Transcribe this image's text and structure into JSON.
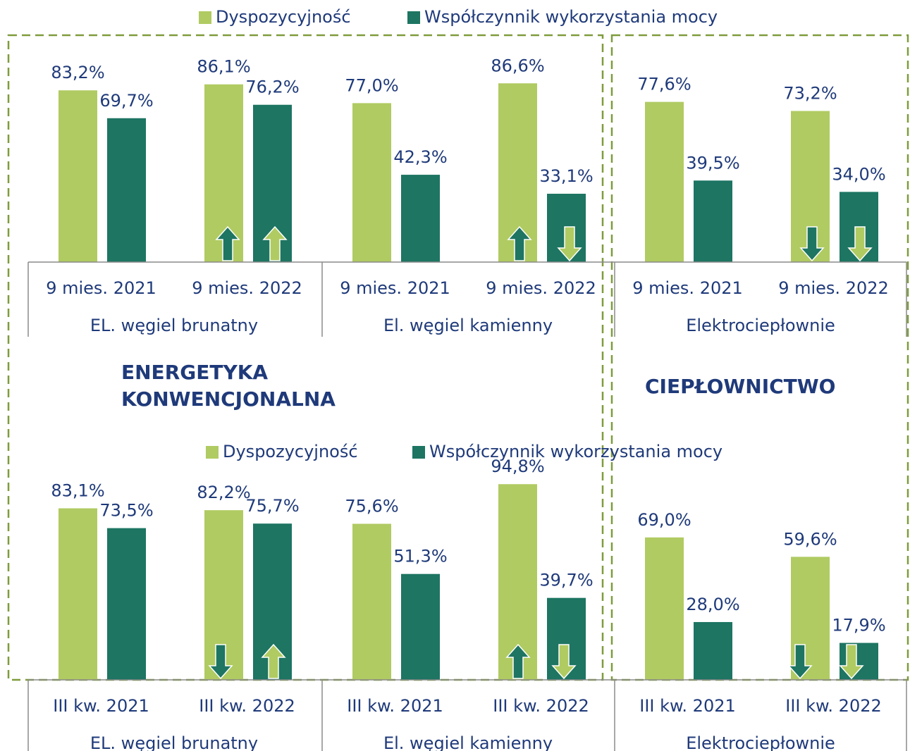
{
  "chart_data": [
    {
      "type": "bar",
      "categories": [
        "9 mies. 2021",
        "9 mies. 2022",
        "9 mies. 2021",
        "9 mies. 2022",
        "9 mies. 2021",
        "9 mies. 2022"
      ],
      "groups": [
        "EL. węgiel brunatny",
        "El. węgiel kamienny",
        "Elektrociepłownie"
      ],
      "ylim": [
        0,
        100
      ],
      "series": [
        {
          "name": "Dyspozycyjność",
          "color": "#b0cb62",
          "values": [
            83.2,
            86.1,
            77.0,
            86.6,
            77.6,
            73.2
          ],
          "value_labels": [
            "83,2%",
            "86,1%",
            "77,0%",
            "86,6%",
            "77,6%",
            "73,2%"
          ]
        },
        {
          "name": "Współczynnik wykorzystania mocy",
          "color": "#1d7562",
          "values": [
            69.7,
            76.2,
            42.3,
            33.1,
            39.5,
            34.0
          ],
          "value_labels": [
            "69,7%",
            "76,2%",
            "42,3%",
            "33,1%",
            "39,5%",
            "34,0%"
          ]
        }
      ]
    },
    {
      "type": "bar",
      "categories": [
        "III kw. 2021",
        "III kw. 2022",
        "III kw. 2021",
        "III kw. 2022",
        "III kw. 2021",
        "III kw. 2022"
      ],
      "groups": [
        "EL. węgiel brunatny",
        "El. węgiel kamienny",
        "Elektrociepłownie"
      ],
      "ylim": [
        0,
        100
      ],
      "series": [
        {
          "name": "Dyspozycyjność",
          "color": "#b0cb62",
          "values": [
            83.1,
            82.2,
            75.6,
            94.8,
            69.0,
            59.6
          ],
          "value_labels": [
            "83,1%",
            "82,2%",
            "75,6%",
            "94,8%",
            "69,0%",
            "59,6%"
          ]
        },
        {
          "name": "Współczynnik wykorzystania mocy",
          "color": "#1d7562",
          "values": [
            73.5,
            75.7,
            51.3,
            39.7,
            28.0,
            17.9
          ],
          "value_labels": [
            "73,5%",
            "75,7%",
            "51,3%",
            "39,7%",
            "28,0%",
            "17,9%"
          ]
        }
      ]
    }
  ],
  "sections": [
    [
      "ENERGETYKA",
      "KONWENCJONALNA"
    ],
    [
      "CIEPŁOWNICTWO"
    ]
  ]
}
